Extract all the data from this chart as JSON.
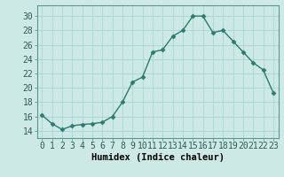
{
  "x": [
    0,
    1,
    2,
    3,
    4,
    5,
    6,
    7,
    8,
    9,
    10,
    11,
    12,
    13,
    14,
    15,
    16,
    17,
    18,
    19,
    20,
    21,
    22,
    23
  ],
  "y": [
    16.2,
    15.0,
    14.2,
    14.7,
    14.9,
    15.0,
    15.2,
    16.0,
    18.0,
    20.8,
    21.5,
    25.0,
    25.3,
    27.2,
    28.0,
    30.0,
    30.0,
    27.7,
    28.0,
    26.5,
    25.0,
    23.5,
    22.5,
    19.3
  ],
  "line_color": "#2d7a6e",
  "marker": "D",
  "marker_size": 2.5,
  "bg_color": "#cce9e6",
  "grid_color": "#b0d8d4",
  "xlabel": "Humidex (Indice chaleur)",
  "ylabel_ticks": [
    14,
    16,
    18,
    20,
    22,
    24,
    26,
    28,
    30
  ],
  "xlim": [
    -0.5,
    23.5
  ],
  "ylim": [
    13.0,
    31.5
  ],
  "xlabel_fontsize": 7.5,
  "tick_fontsize": 7,
  "line_width": 1.0
}
